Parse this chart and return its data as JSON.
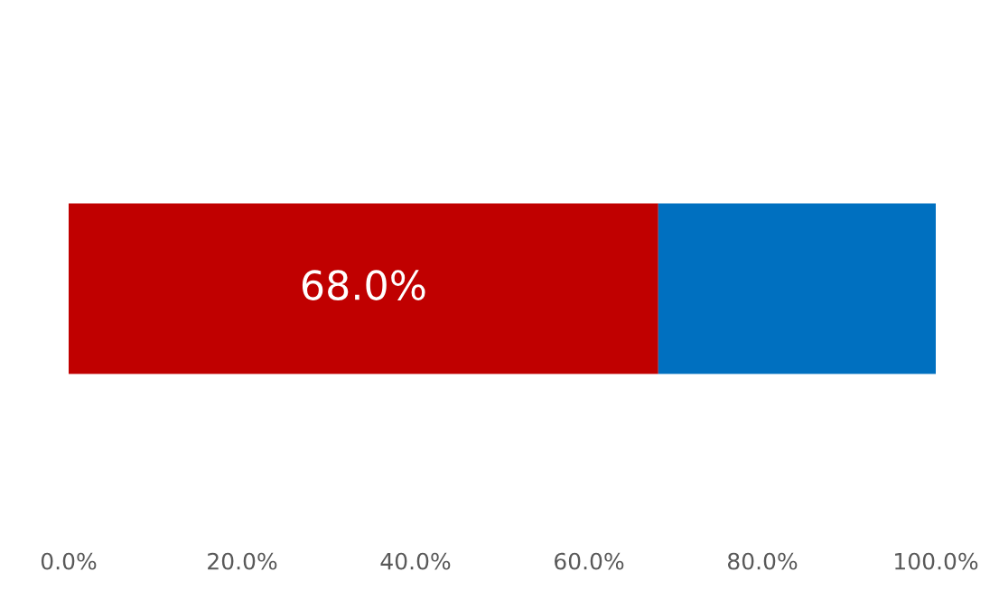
{
  "chart_data": {
    "type": "bar",
    "orientation": "horizontal",
    "stacked": true,
    "categories": [
      null
    ],
    "series": [
      {
        "color": "#c00000",
        "values": [
          68
        ],
        "value_labels": [
          "68.0%"
        ]
      },
      {
        "color": "#0070c0",
        "values": [
          32
        ]
      }
    ],
    "xlim": [
      0,
      100
    ],
    "xticks": [
      {
        "value": 0,
        "label": "0.0%"
      },
      {
        "value": 20,
        "label": "20.0%"
      },
      {
        "value": 40,
        "label": "40.0%"
      },
      {
        "value": 60,
        "label": "60.0%"
      },
      {
        "value": 80,
        "label": "80.0%"
      },
      {
        "value": 100,
        "label": "100.0%"
      }
    ],
    "grid": false,
    "legend": false
  }
}
